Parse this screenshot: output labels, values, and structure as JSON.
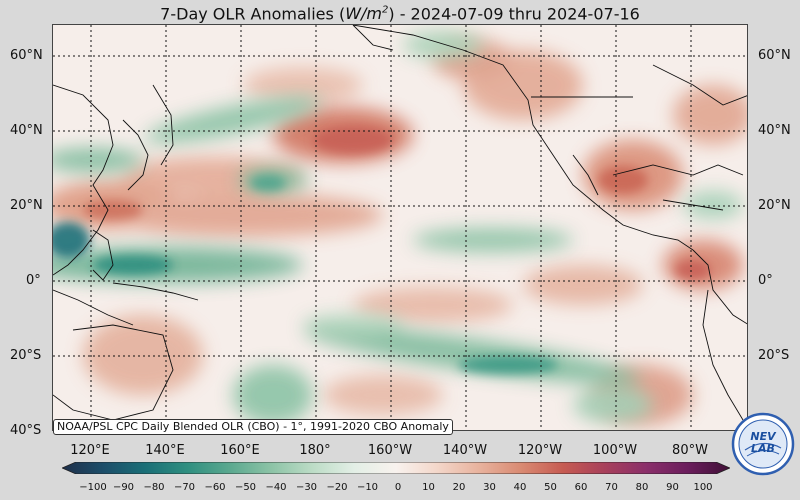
{
  "title": {
    "prefix": "7-Day OLR Anomalies (",
    "unit_base": "W/m",
    "unit_exp": "2",
    "suffix": ") - 2024-07-09 thru 2024-07-16"
  },
  "latitude_labels": [
    "60°N",
    "40°N",
    "20°N",
    "0°",
    "20°S",
    "40°S"
  ],
  "longitude_labels": [
    "120°E",
    "140°E",
    "160°E",
    "180°",
    "160°W",
    "140°W",
    "120°W",
    "100°W",
    "80°W"
  ],
  "credit": "NOAA/PSL CPC Daily Blended OLR (CBO) - 1°, 1991-2020 CBO Anomaly",
  "colorbar": {
    "ticks": [
      "−100",
      "−90",
      "−80",
      "−70",
      "−60",
      "−50",
      "−40",
      "−30",
      "−20",
      "−10",
      "0",
      "10",
      "20",
      "30",
      "40",
      "50",
      "60",
      "70",
      "80",
      "90",
      "100"
    ],
    "colors": [
      "#1f2f4a",
      "#1c4e6a",
      "#1a6f77",
      "#2f8f80",
      "#5aa88f",
      "#8cc3a6",
      "#bcdcc6",
      "#e3efe6",
      "#f8f2ee",
      "#f3d6c9",
      "#e8b29d",
      "#d98a72",
      "#c65b52",
      "#a8405b",
      "#8a2f6a",
      "#6a1d5c",
      "#3f1036"
    ]
  },
  "logo": {
    "text": "NEV LAB",
    "colors": {
      "ring": "#2f5fb0",
      "fill": "#dfe9f7"
    }
  },
  "colors": {
    "ocean_base": "#f6eeea",
    "positive": "#d9826a",
    "strong_positive": "#c65b52",
    "negative": "#6fb395",
    "strong_negative": "#1f6f78",
    "coast": "#111111"
  }
}
